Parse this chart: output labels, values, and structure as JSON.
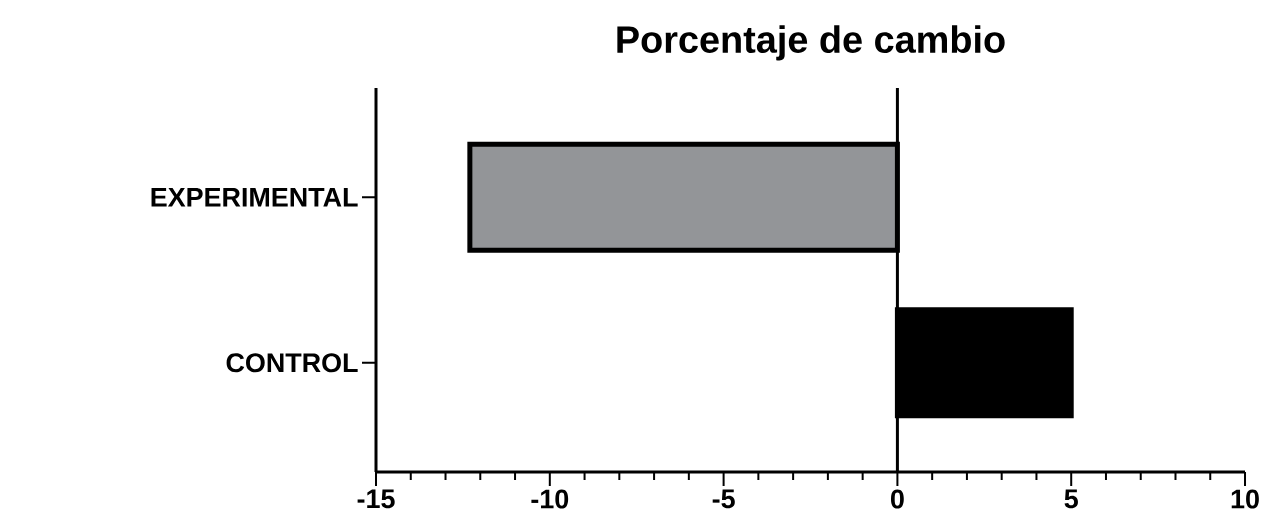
{
  "chart_data": {
    "type": "bar",
    "orientation": "horizontal",
    "title": "Porcentaje de cambio",
    "categories": [
      "EXPERIMENTAL",
      "CONTROL"
    ],
    "values": [
      -12.3,
      5
    ],
    "colors": [
      "#939598",
      "#000000"
    ],
    "xlim": [
      -15,
      10
    ],
    "xticks": [
      -15,
      -10,
      -5,
      0,
      5,
      10
    ],
    "ref_lines": [
      {
        "axis": "x",
        "value": 0
      }
    ],
    "grid": false
  }
}
